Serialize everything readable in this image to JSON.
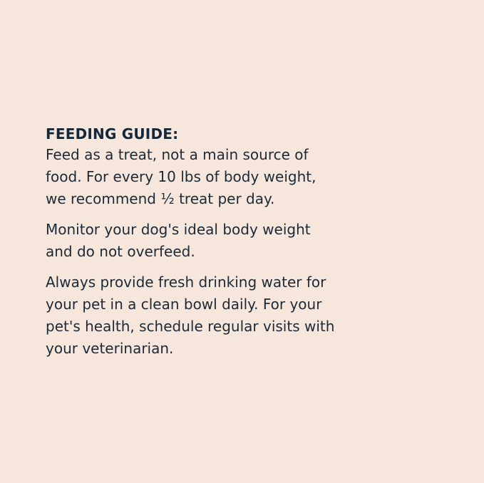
{
  "heading": "FEEDING GUIDE:",
  "paragraphs": [
    [
      "Feed as a treat, not a main source of",
      "food. For every 10 lbs of body weight,",
      "we recommend ½ treat per day."
    ],
    [
      "Monitor your dog's ideal body weight",
      "and do not overfeed."
    ],
    [
      "Always provide fresh drinking water for",
      "your pet in a clean bowl daily. For your",
      "pet's health, schedule regular visits with",
      "your veterinarian."
    ]
  ],
  "colors": {
    "background": "#f6e6dc",
    "text": "#1c2a38"
  }
}
